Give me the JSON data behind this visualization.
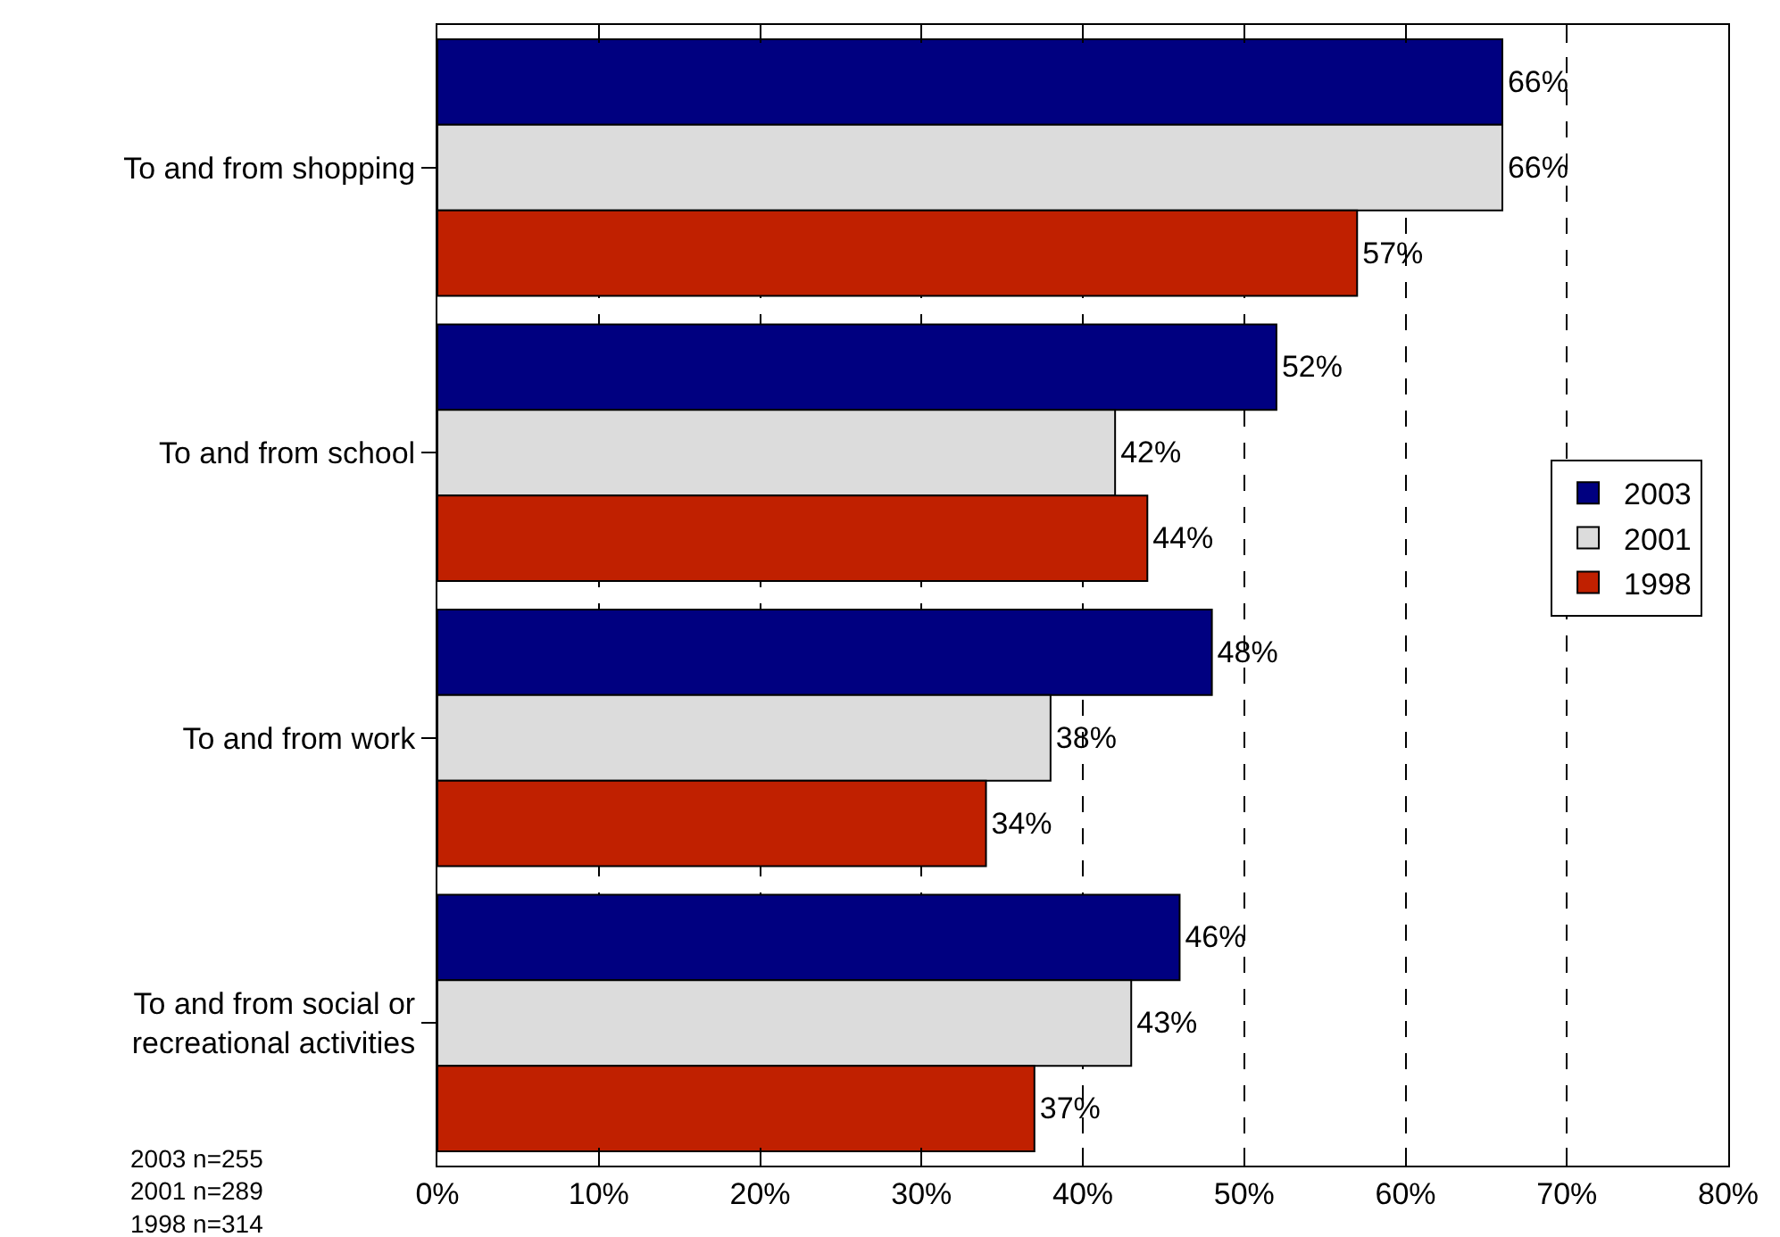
{
  "chart_data": {
    "type": "bar",
    "orientation": "horizontal",
    "categories": [
      "To and from shopping",
      "To and from school",
      "To and from work",
      "To and from social or recreational activities"
    ],
    "series": [
      {
        "name": "2003",
        "color": "#000080",
        "values": [
          66,
          52,
          48,
          46
        ],
        "value_labels": [
          "66%",
          "52%",
          "48%",
          "46%"
        ]
      },
      {
        "name": "2001",
        "color": "#dcdcdc",
        "values": [
          66,
          42,
          38,
          43
        ],
        "value_labels": [
          "66%",
          "42%",
          "38%",
          "43%"
        ]
      },
      {
        "name": "1998",
        "color": "#c02000",
        "values": [
          57,
          44,
          34,
          37
        ],
        "value_labels": [
          "57%",
          "44%",
          "34%",
          "37%"
        ]
      }
    ],
    "xlim": [
      0,
      80
    ],
    "xticks": [
      {
        "value": 0,
        "label": "0%"
      },
      {
        "value": 10,
        "label": "10%"
      },
      {
        "value": 20,
        "label": "20%"
      },
      {
        "value": 30,
        "label": "30%"
      },
      {
        "value": 40,
        "label": "40%"
      },
      {
        "value": 50,
        "label": "50%"
      },
      {
        "value": 60,
        "label": "60%"
      },
      {
        "value": 70,
        "label": "70%"
      },
      {
        "value": 80,
        "label": "80%"
      }
    ],
    "grid": "x",
    "legend": "right",
    "annotations": [
      "2003 n=255\n2001 n=289\n1998 n=314"
    ]
  }
}
